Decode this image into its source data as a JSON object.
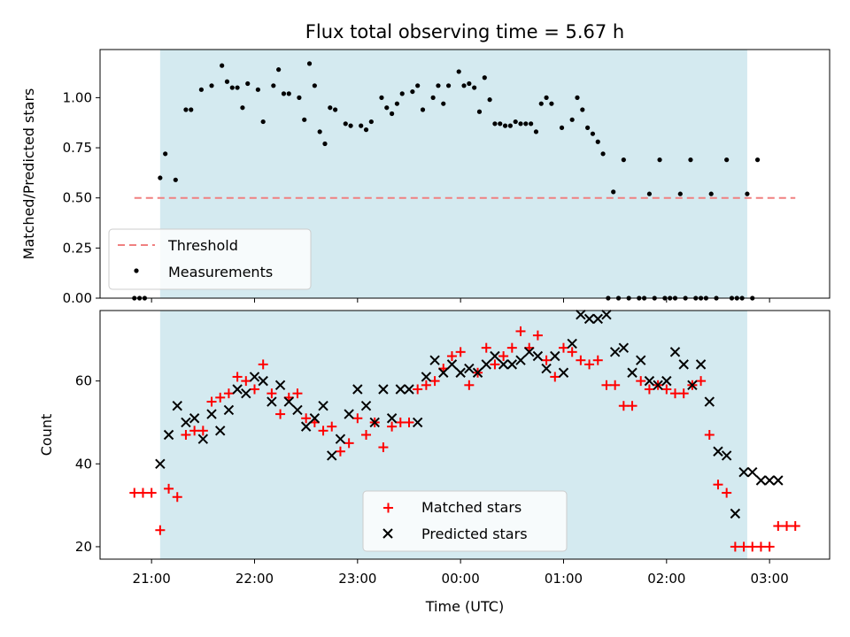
{
  "title": "Flux total observing time = 5.67 h",
  "colors": {
    "band": "#d4eaf0",
    "threshold": "#f08080",
    "matched": "#ff0000",
    "predicted": "#000000",
    "points": "#000000"
  },
  "top_panel": {
    "ylabel": "Matched/Predicted stars",
    "yticks": [
      "0.00",
      "0.25",
      "0.50",
      "0.75",
      "1.00"
    ],
    "legend": {
      "threshold": "Threshold",
      "measurements": "Measurements"
    }
  },
  "bottom_panel": {
    "ylabel": "Count",
    "yticks": [
      "20",
      "40",
      "60"
    ],
    "legend": {
      "matched": "Matched stars",
      "predicted": "Predicted stars"
    }
  },
  "xaxis": {
    "label": "Time (UTC)",
    "ticks": [
      "21:00",
      "22:00",
      "23:00",
      "00:00",
      "01:00",
      "02:00",
      "03:00"
    ]
  },
  "chart_data": [
    {
      "type": "scatter",
      "title": "Flux total observing time = 5.67 h",
      "xlabel": "",
      "ylabel": "Matched/Predicted stars",
      "x_unit": "UTC clock time",
      "xlim": [
        "20:30",
        "03:35"
      ],
      "ylim": [
        0,
        1.24
      ],
      "shaded_interval": [
        "21:05",
        "02:47"
      ],
      "threshold": {
        "name": "Threshold",
        "y": 0.5,
        "x_range": [
          "20:50",
          "03:15"
        ]
      },
      "legend_position": "lower-left",
      "series": [
        {
          "name": "Measurements",
          "x": [
            "20:50",
            "20:53",
            "20:56",
            "21:05",
            "21:08",
            "21:14",
            "21:20",
            "21:23",
            "21:29",
            "21:35",
            "21:41",
            "21:44",
            "21:47",
            "21:50",
            "21:53",
            "21:56",
            "22:02",
            "22:05",
            "22:11",
            "22:14",
            "22:17",
            "22:20",
            "22:26",
            "22:29",
            "22:32",
            "22:35",
            "22:38",
            "22:41",
            "22:44",
            "22:47",
            "22:53",
            "22:56",
            "23:02",
            "23:05",
            "23:08",
            "23:14",
            "23:17",
            "23:20",
            "23:23",
            "23:26",
            "23:32",
            "23:35",
            "23:38",
            "23:44",
            "23:47",
            "23:50",
            "23:53",
            "23:59",
            "00:02",
            "00:05",
            "00:08",
            "00:11",
            "00:14",
            "00:17",
            "00:20",
            "00:23",
            "00:26",
            "00:29",
            "00:32",
            "00:35",
            "00:38",
            "00:41",
            "00:44",
            "00:47",
            "00:50",
            "00:53",
            "00:59",
            "01:05",
            "01:08",
            "01:11",
            "01:14",
            "01:17",
            "01:20",
            "01:23",
            "01:26",
            "01:29",
            "01:32",
            "01:35",
            "01:38",
            "01:44",
            "01:47",
            "01:50",
            "01:53",
            "01:56",
            "01:59",
            "02:02",
            "02:05",
            "02:08",
            "02:11",
            "02:14",
            "02:17",
            "02:20",
            "02:23",
            "02:26",
            "02:29",
            "02:35",
            "02:38",
            "02:41",
            "02:44",
            "02:47",
            "02:50",
            "02:53"
          ],
          "y": [
            0,
            0,
            0,
            0.6,
            0.72,
            0.59,
            0.94,
            0.94,
            1.04,
            1.06,
            1.16,
            1.08,
            1.05,
            1.05,
            0.95,
            1.07,
            1.04,
            0.88,
            1.06,
            1.14,
            1.02,
            1.02,
            1.0,
            0.89,
            1.17,
            1.06,
            0.83,
            0.77,
            0.95,
            0.94,
            0.87,
            0.86,
            0.86,
            0.84,
            0.88,
            1.0,
            0.95,
            0.92,
            0.97,
            1.02,
            1.03,
            1.06,
            0.94,
            1.0,
            1.06,
            0.97,
            1.06,
            1.13,
            1.06,
            1.07,
            1.05,
            0.93,
            1.1,
            0.99,
            0.87,
            0.87,
            0.86,
            0.86,
            0.88,
            0.87,
            0.87,
            0.87,
            0.83,
            0.97,
            1.0,
            0.97,
            0.85,
            0.89,
            1.0,
            0.94,
            0.85,
            0.82,
            0.78,
            0.72,
            0,
            0.53,
            0,
            0.69,
            0,
            0,
            0,
            0.52,
            0,
            0.69,
            0,
            0,
            0,
            0.52,
            0,
            0.69,
            0,
            0,
            0,
            0.52,
            0,
            0.69,
            0,
            0,
            0,
            0.52,
            0,
            0.69
          ]
        }
      ]
    },
    {
      "type": "scatter",
      "xlabel": "Time (UTC)",
      "ylabel": "Count",
      "x_unit": "UTC clock time",
      "xlim": [
        "20:30",
        "03:35"
      ],
      "ylim": [
        17,
        77
      ],
      "shaded_interval": [
        "21:05",
        "02:47"
      ],
      "legend_position": "lower-center",
      "series": [
        {
          "name": "Matched stars",
          "x": [
            "20:50",
            "20:55",
            "21:00",
            "21:05",
            "21:10",
            "21:15",
            "21:20",
            "21:25",
            "21:30",
            "21:35",
            "21:40",
            "21:45",
            "21:50",
            "21:55",
            "22:00",
            "22:05",
            "22:10",
            "22:15",
            "22:20",
            "22:25",
            "22:30",
            "22:35",
            "22:40",
            "22:45",
            "22:50",
            "22:55",
            "23:00",
            "23:05",
            "23:10",
            "23:15",
            "23:20",
            "23:25",
            "23:30",
            "23:35",
            "23:40",
            "23:45",
            "23:50",
            "23:55",
            "00:00",
            "00:05",
            "00:10",
            "00:15",
            "00:20",
            "00:25",
            "00:30",
            "00:35",
            "00:40",
            "00:45",
            "00:50",
            "00:55",
            "01:00",
            "01:05",
            "01:10",
            "01:15",
            "01:20",
            "01:25",
            "01:30",
            "01:35",
            "01:40",
            "01:45",
            "01:50",
            "01:55",
            "02:00",
            "02:05",
            "02:10",
            "02:15",
            "02:20",
            "02:25",
            "02:30",
            "02:35",
            "02:40",
            "02:45",
            "02:50",
            "02:55",
            "03:00",
            "03:05",
            "03:10",
            "03:15"
          ],
          "y": [
            33,
            33,
            33,
            24,
            34,
            32,
            47,
            48,
            48,
            55,
            56,
            57,
            61,
            60,
            58,
            64,
            57,
            52,
            56,
            57,
            51,
            50,
            48,
            49,
            43,
            45,
            51,
            47,
            50,
            44,
            49,
            50,
            50,
            58,
            59,
            60,
            63,
            66,
            67,
            59,
            62,
            68,
            64,
            66,
            68,
            72,
            68,
            71,
            65,
            61,
            68,
            67,
            65,
            64,
            65,
            59,
            59,
            54,
            54,
            60,
            58,
            59,
            58,
            57,
            57,
            59,
            60,
            47,
            35,
            33,
            20,
            20,
            20,
            20,
            20,
            25,
            25,
            25
          ]
        },
        {
          "name": "Predicted stars",
          "x": [
            "21:05",
            "21:10",
            "21:15",
            "21:20",
            "21:25",
            "21:30",
            "21:35",
            "21:40",
            "21:45",
            "21:50",
            "21:55",
            "22:00",
            "22:05",
            "22:10",
            "22:15",
            "22:20",
            "22:25",
            "22:30",
            "22:35",
            "22:40",
            "22:45",
            "22:50",
            "22:55",
            "23:00",
            "23:05",
            "23:10",
            "23:15",
            "23:20",
            "23:25",
            "23:30",
            "23:35",
            "23:40",
            "23:45",
            "23:50",
            "23:55",
            "00:00",
            "00:05",
            "00:10",
            "00:15",
            "00:20",
            "00:25",
            "00:30",
            "00:35",
            "00:40",
            "00:45",
            "00:50",
            "00:55",
            "01:00",
            "01:05",
            "01:10",
            "01:15",
            "01:20",
            "01:25",
            "01:30",
            "01:35",
            "01:40",
            "01:45",
            "01:50",
            "01:55",
            "02:00",
            "02:05",
            "02:10",
            "02:15",
            "02:20",
            "02:25",
            "02:30",
            "02:35",
            "02:40",
            "02:45",
            "02:50",
            "02:55",
            "03:00",
            "03:05"
          ],
          "y": [
            40,
            47,
            54,
            50,
            51,
            46,
            52,
            48,
            53,
            58,
            57,
            61,
            60,
            55,
            59,
            55,
            53,
            49,
            51,
            54,
            42,
            46,
            52,
            58,
            54,
            50,
            58,
            51,
            58,
            58,
            50,
            61,
            65,
            62,
            64,
            62,
            63,
            62,
            64,
            66,
            64,
            64,
            65,
            67,
            66,
            63,
            66,
            62,
            69,
            76,
            75,
            75,
            76,
            67,
            68,
            62,
            65,
            60,
            59,
            60,
            67,
            64,
            59,
            64,
            55,
            43,
            42,
            28,
            38,
            38,
            36,
            36,
            36
          ]
        }
      ]
    }
  ]
}
